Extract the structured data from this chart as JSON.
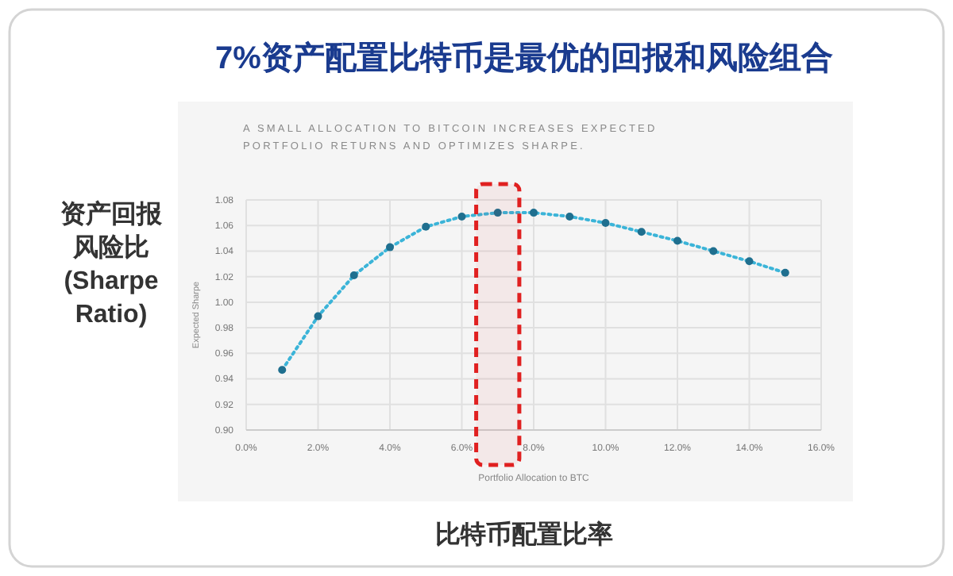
{
  "chart_data": {
    "type": "line",
    "title": "7%资产配置比特币是最优的回报和风险组合",
    "subtitle": "A SMALL ALLOCATION TO BITCOIN INCREASES EXPECTED\nPORTFOLIO RETURNS AND OPTIMIZES SHARPE.",
    "xlabel": "Portfolio Allocation to BTC",
    "ylabel": "Expected Sharpe",
    "annotations": [
      "资产回报风险比",
      "(Sharpe Ratio)",
      "比特币配置比率"
    ],
    "x": [
      1,
      2,
      3,
      4,
      5,
      6,
      7,
      8,
      9,
      10,
      11,
      12,
      13,
      14,
      15
    ],
    "series": [
      {
        "color": "#3bb4d8",
        "values": [
          0.947,
          0.989,
          1.021,
          1.043,
          1.059,
          1.067,
          1.07,
          1.07,
          1.067,
          1.062,
          1.055,
          1.048,
          1.04,
          1.032,
          1.023
        ]
      }
    ],
    "xlim": [
      0,
      16
    ],
    "xticks": [
      {
        "value": 0,
        "label": "0.0%"
      },
      {
        "value": 2,
        "label": "2.0%"
      },
      {
        "value": 4,
        "label": "4.0%"
      },
      {
        "value": 6,
        "label": "6.0%"
      },
      {
        "value": 8,
        "label": "8.0%"
      },
      {
        "value": 10,
        "label": "10.0%"
      },
      {
        "value": 12,
        "label": "12.0%"
      },
      {
        "value": 14,
        "label": "14.0%"
      },
      {
        "value": 16,
        "label": "16.0%"
      }
    ],
    "ylim": [
      0.9,
      1.08
    ],
    "yticks": [
      {
        "value": 0.9,
        "label": "0.90"
      },
      {
        "value": 0.92,
        "label": "0.92"
      },
      {
        "value": 0.94,
        "label": "0.94"
      },
      {
        "value": 0.96,
        "label": "0.96"
      },
      {
        "value": 0.98,
        "label": "0.98"
      },
      {
        "value": 1.0,
        "label": "1.00"
      },
      {
        "value": 1.02,
        "label": "1.02"
      },
      {
        "value": 1.04,
        "label": "1.04"
      },
      {
        "value": 1.06,
        "label": "1.06"
      },
      {
        "value": 1.08,
        "label": "1.08"
      }
    ],
    "bands": [
      {
        "axis": "x",
        "from": 6.4,
        "to": 7.6,
        "color": "#e02020"
      }
    ],
    "grid": true,
    "marker": "circle",
    "line_style": "dotted"
  }
}
